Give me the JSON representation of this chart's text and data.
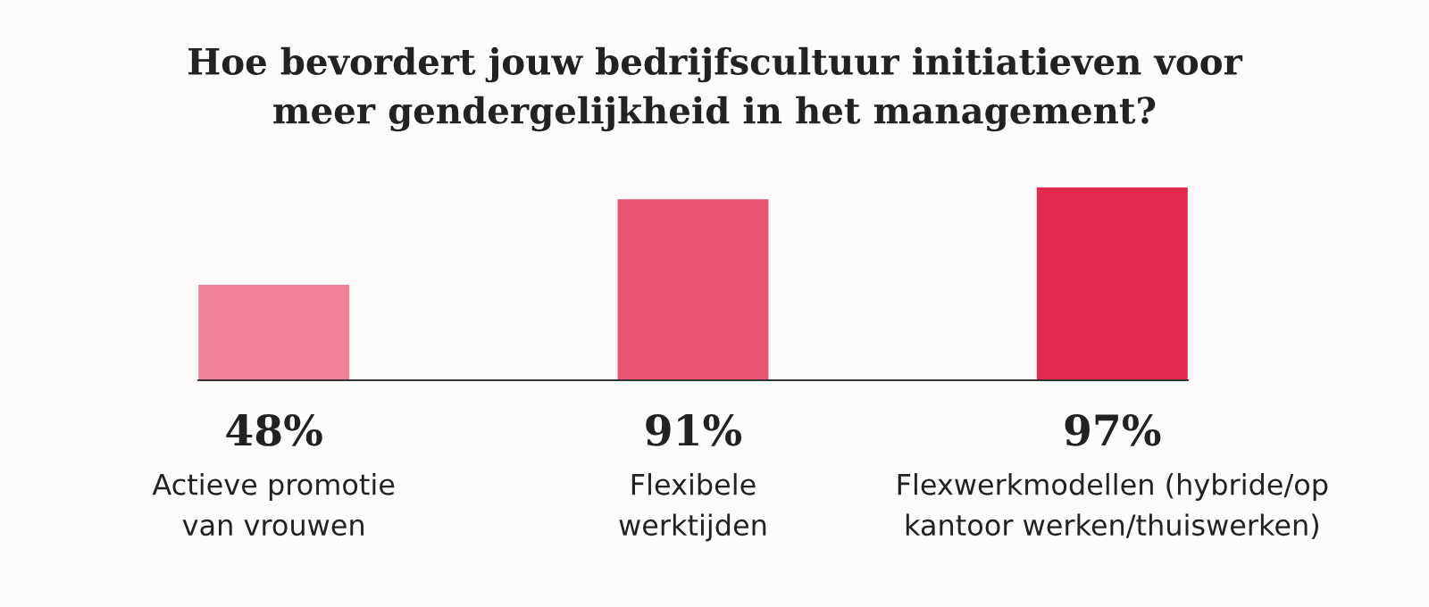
{
  "chart_data": {
    "type": "bar",
    "title": "Hoe bevordert jouw bedrijfscultuur initiatieven voor\nmeer gendergelijkheid in het management?",
    "categories": [
      "Actieve promotie\nvan vrouwen",
      "Flexibele\nwerktijden",
      "Flexwerkmodellen (hybride/op\nkantoor werken/thuiswerken)"
    ],
    "values": [
      48,
      91,
      97
    ],
    "colors": [
      "#f08399",
      "#e85672",
      "#e52a50"
    ],
    "value_labels": [
      "48%",
      "91%",
      "97%"
    ]
  }
}
